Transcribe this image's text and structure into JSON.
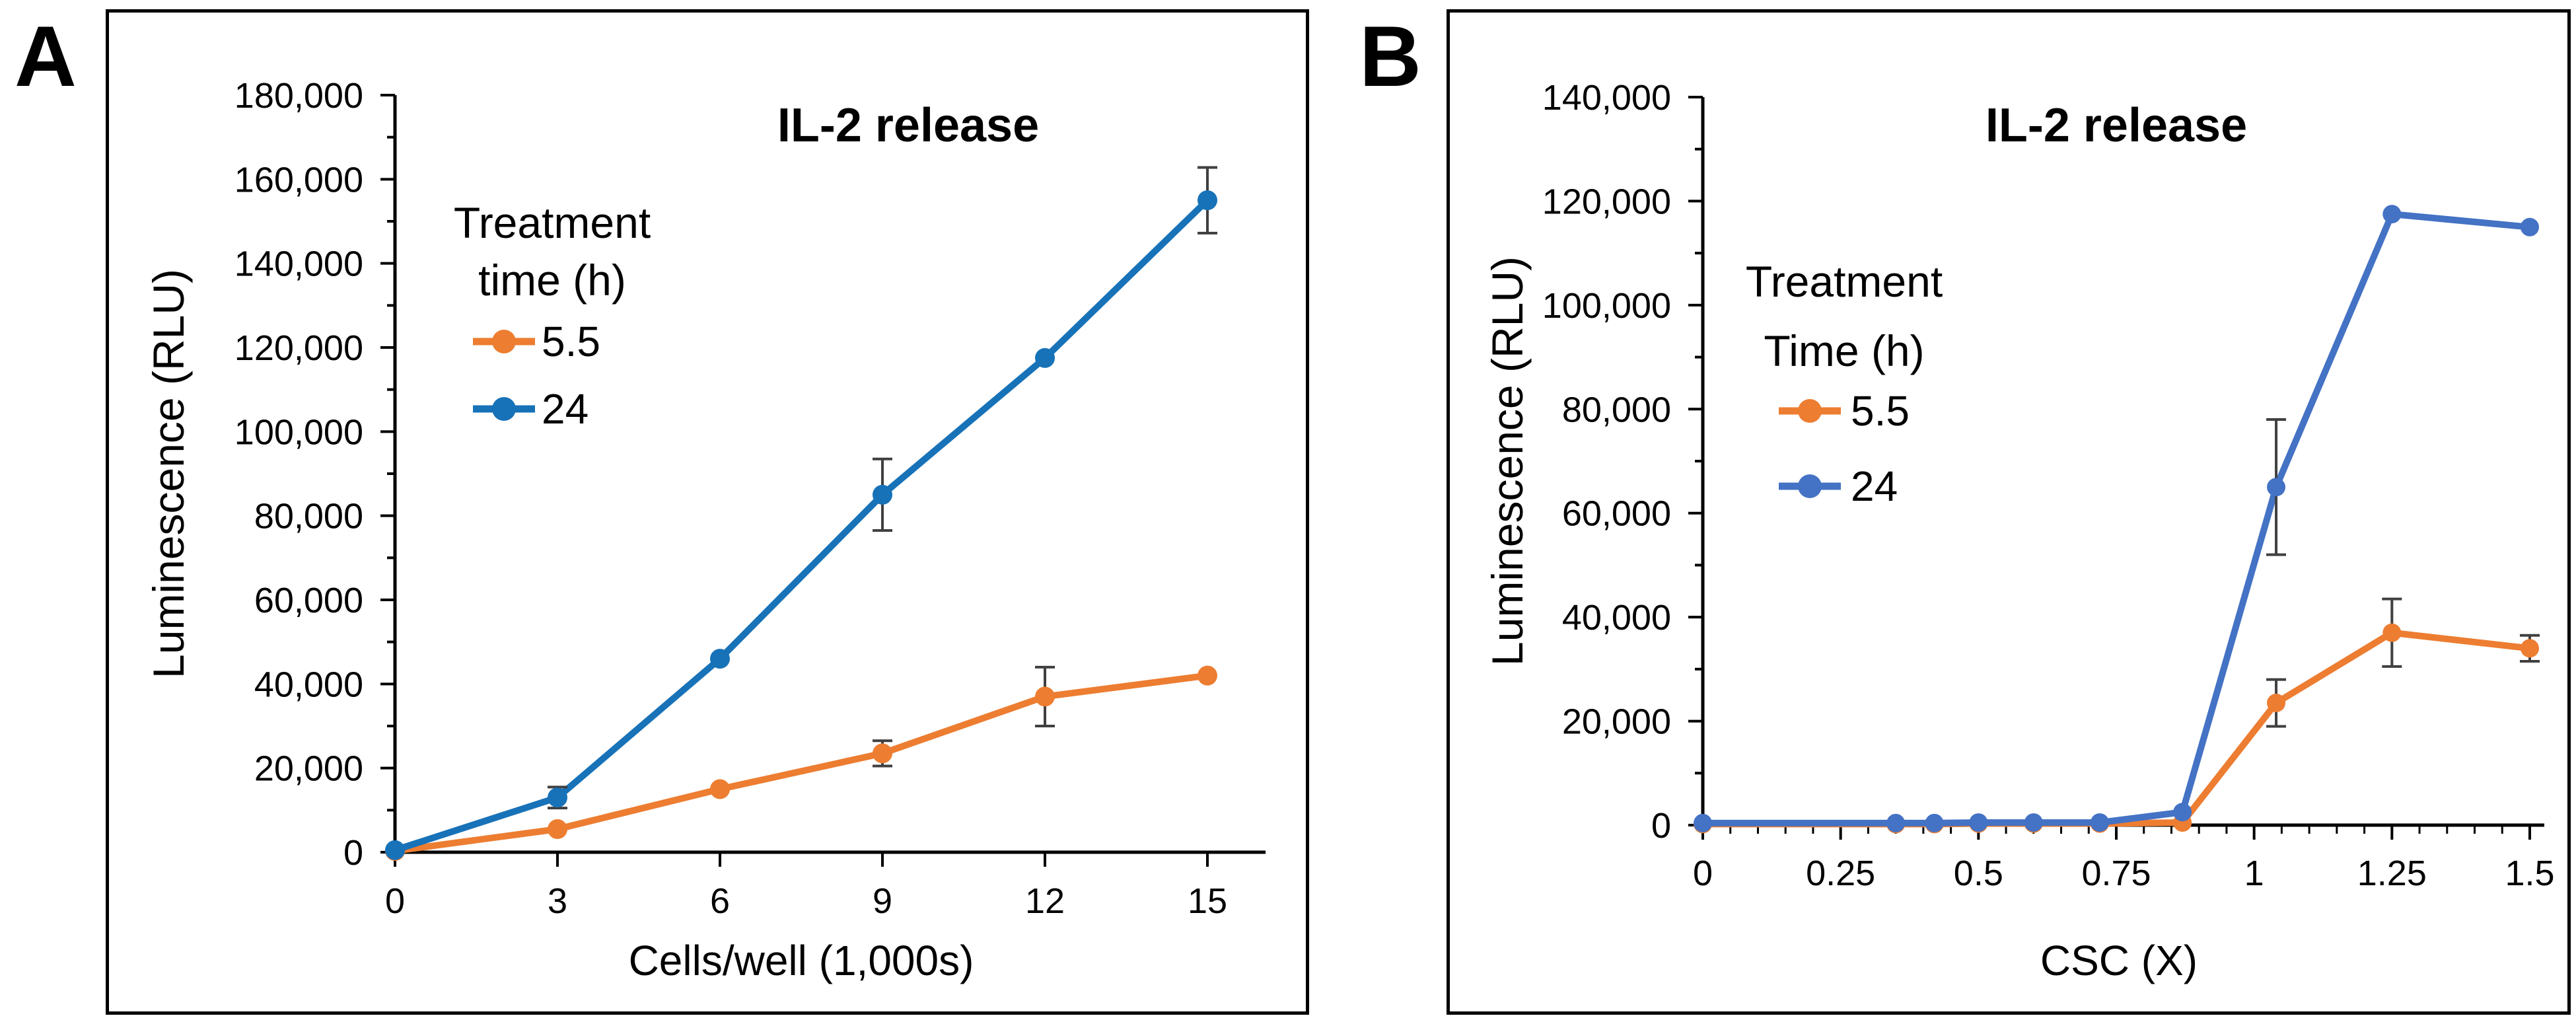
{
  "figure": {
    "panels": [
      {
        "letter": "A"
      },
      {
        "letter": "B"
      }
    ]
  },
  "chart_data": [
    {
      "type": "line",
      "title": "IL-2 release",
      "xlabel": "Cells/well (1,000s)",
      "ylabel": "Luminescence (RLU)",
      "legend_title_lines": [
        "Treatment",
        "time (h)"
      ],
      "legend_position": "upper-left-inside",
      "grid": false,
      "x": [
        0,
        3,
        6,
        9,
        12,
        15
      ],
      "x_ticks": [
        0,
        3,
        6,
        9,
        12,
        15
      ],
      "x_tick_labels": [
        "0",
        "3",
        "6",
        "9",
        "12",
        "15"
      ],
      "x_minor_step": null,
      "xlim": [
        0,
        15
      ],
      "ylim": [
        0,
        180000
      ],
      "y_tick_step": 20000,
      "y_minor_step": 10000,
      "error_bar_color": "#404040",
      "series": [
        {
          "name": "5.5",
          "color": "#ED7D31",
          "values": [
            300,
            5500,
            15000,
            23500,
            37000,
            42000
          ],
          "errors": [
            0,
            0,
            0,
            3000,
            7000,
            0
          ]
        },
        {
          "name": "24",
          "color": "#1772B8",
          "values": [
            500,
            13000,
            46000,
            85000,
            117500,
            155000
          ],
          "errors": [
            0,
            2500,
            0,
            8500,
            0,
            7800
          ]
        }
      ]
    },
    {
      "type": "line",
      "title": "IL-2 release",
      "xlabel": "CSC (X)",
      "ylabel": "Luminescence (RLU)",
      "legend_title_lines": [
        "Treatment",
        "Time (h)"
      ],
      "legend_position": "upper-left-inside",
      "grid": false,
      "x": [
        0,
        0.35,
        0.42,
        0.5,
        0.6,
        0.72,
        0.87,
        1.04,
        1.25,
        1.5
      ],
      "x_ticks": [
        0,
        0.25,
        0.5,
        0.75,
        1,
        1.25,
        1.5
      ],
      "x_tick_labels": [
        "0",
        "0.25",
        "0.5",
        "0.75",
        "1",
        "1.25",
        "1.5"
      ],
      "x_minor_step": 0.05,
      "xlim": [
        0,
        1.5
      ],
      "ylim": [
        0,
        140000
      ],
      "y_tick_step": 20000,
      "y_minor_step": 10000,
      "error_bar_color": "#404040",
      "series": [
        {
          "name": "5.5",
          "color": "#ED7D31",
          "values": [
            200,
            200,
            200,
            300,
            300,
            300,
            500,
            23500,
            37000,
            34000
          ],
          "errors": [
            0,
            0,
            0,
            0,
            0,
            0,
            0,
            4500,
            6500,
            2500
          ]
        },
        {
          "name": "24",
          "color": "#4472C4",
          "values": [
            400,
            400,
            400,
            500,
            500,
            500,
            2500,
            65000,
            117500,
            115000
          ],
          "errors": [
            0,
            0,
            0,
            0,
            0,
            0,
            0,
            13000,
            0,
            0
          ]
        }
      ]
    }
  ]
}
